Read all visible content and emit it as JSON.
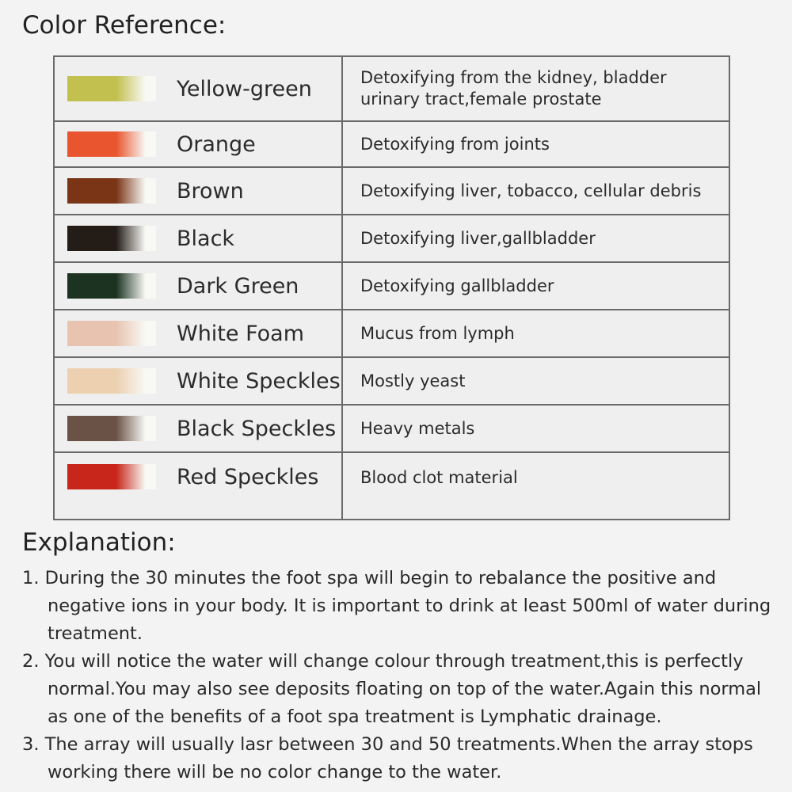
{
  "color_reference": {
    "heading": "Color Reference:",
    "rows": [
      {
        "name": "Yellow-green",
        "color": "#c2c04e",
        "description": "Detoxifying from the kidney, bladder urinary tract,female prostate"
      },
      {
        "name": "Orange",
        "color": "#e8552e",
        "description": "Detoxifying from joints"
      },
      {
        "name": "Brown",
        "color": "#7a3416",
        "description": "Detoxifying liver, tobacco, cellular debris"
      },
      {
        "name": "Black",
        "color": "#231c17",
        "description": "Detoxifying liver,gallbladder"
      },
      {
        "name": "Dark Green",
        "color": "#1c3322",
        "description": "Detoxifying gallbladder"
      },
      {
        "name": "White Foam",
        "color": "#e8c4b0",
        "description": "Mucus from lymph"
      },
      {
        "name": "White Speckles",
        "color": "#ecd0b0",
        "description": "Mostly yeast"
      },
      {
        "name": "Black Speckles",
        "color": "#6b5246",
        "description": "Heavy metals"
      },
      {
        "name": "Red Speckles",
        "color": "#c8261a",
        "description": "Blood clot material"
      }
    ]
  },
  "explanation": {
    "heading": "Explanation:",
    "items": [
      "1. During the 30 minutes the foot spa will begin to rebalance the positive and negative ions in your body. It is important to drink at least 500ml of water during treatment.",
      "2. You will notice the water will change colour through treatment,this is perfectly normal.You may also see deposits floating on top of the water.Again this normal as one of the benefits of a foot spa treatment is Lymphatic drainage.",
      "3. The array will usually lasr between 30 and 50 treatments.When the array stops working there will be no color change to the water."
    ]
  }
}
